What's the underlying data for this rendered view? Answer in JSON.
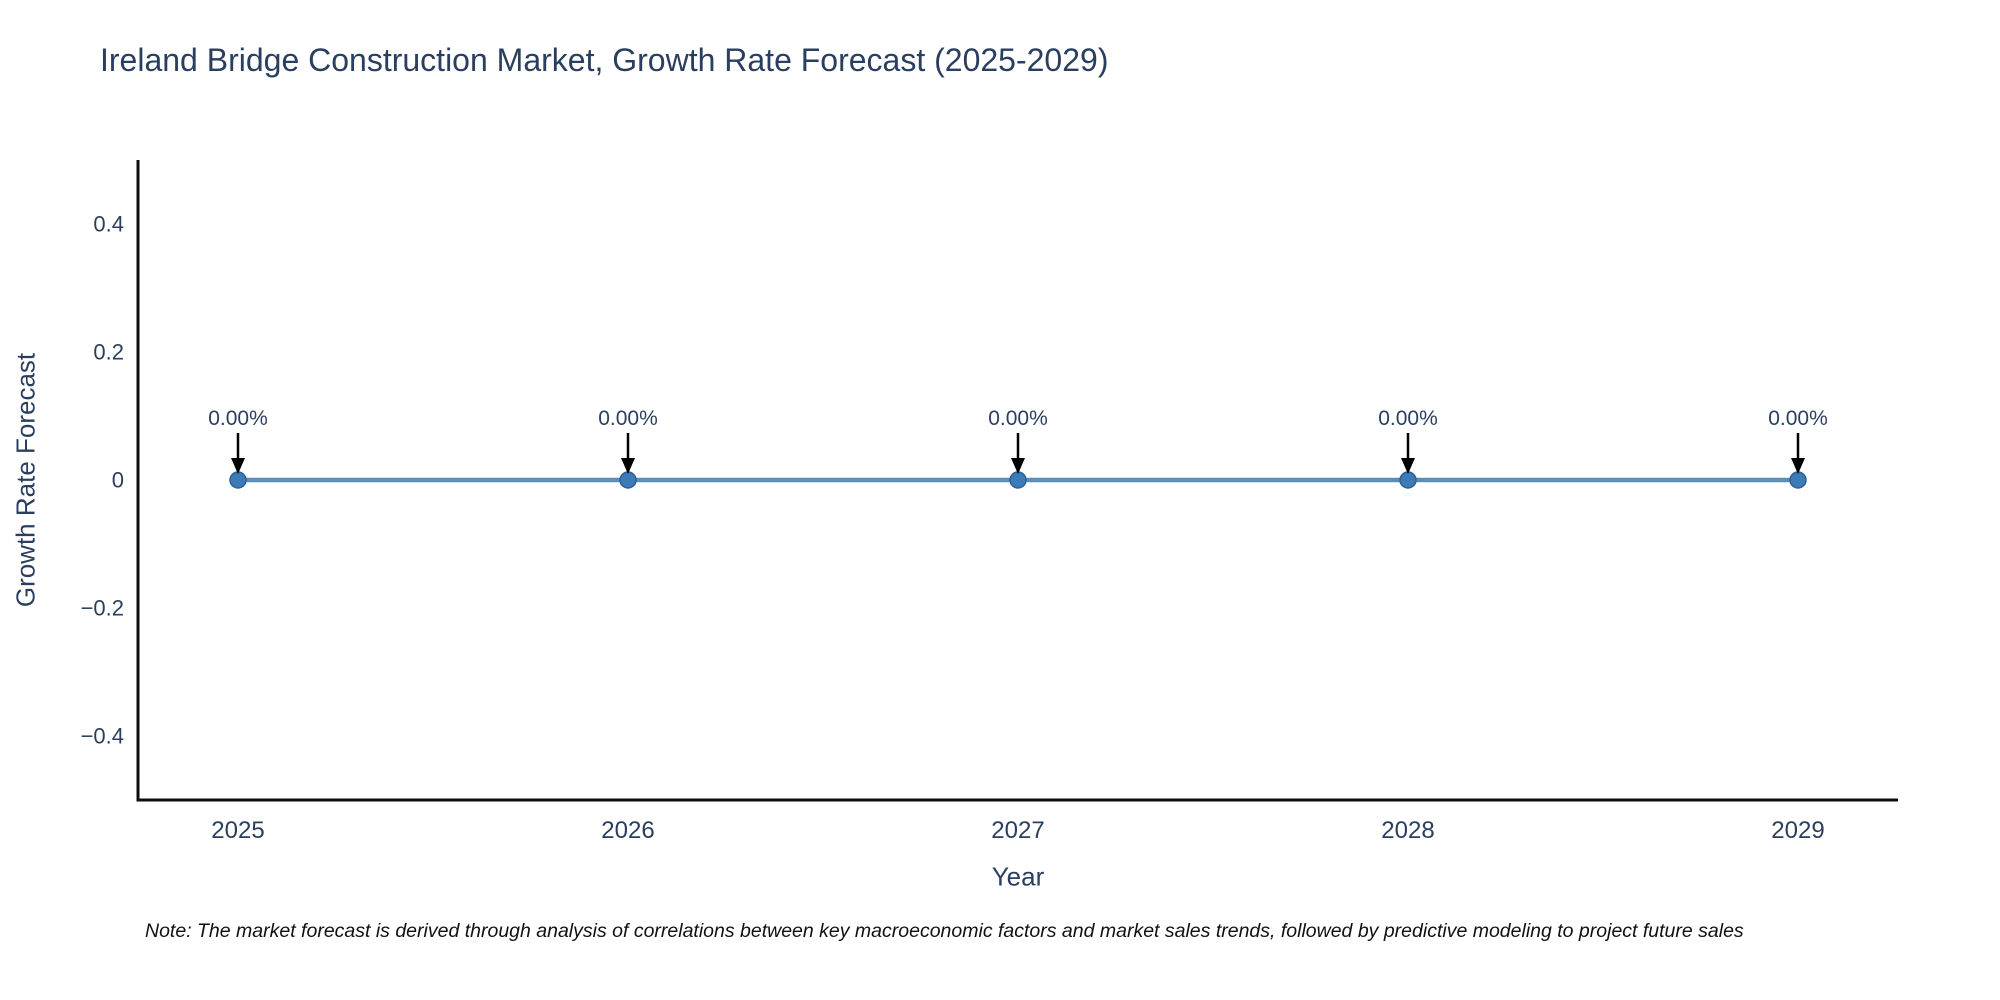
{
  "title": "Ireland Bridge Construction Market, Growth Rate Forecast (2025-2029)",
  "note": "Note: The market forecast is derived through analysis of correlations between key macroeconomic factors and market sales trends, followed by predictive modeling to project future sales",
  "chart_data": {
    "type": "line",
    "title": "Ireland Bridge Construction Market, Growth Rate Forecast (2025-2029)",
    "xlabel": "Year",
    "ylabel": "Growth Rate Forecast",
    "categories": [
      "2025",
      "2026",
      "2027",
      "2028",
      "2029"
    ],
    "values": [
      0,
      0,
      0,
      0,
      0
    ],
    "point_labels": [
      "0.00%",
      "0.00%",
      "0.00%",
      "0.00%",
      "0.00%"
    ],
    "ytick_values": [
      0.4,
      0.2,
      0,
      -0.2,
      -0.4
    ],
    "ytick_labels": [
      "0.4",
      "0.2",
      "0",
      "−0.2",
      "−0.4"
    ],
    "ylim": [
      -0.5,
      0.5
    ],
    "grid": false,
    "legend": false,
    "annotation_style": "black downward arrow pointing to each data point with percentage label above",
    "colors": {
      "line": "#5c8cba",
      "marker": "#3c7ab8",
      "marker_edge": "#2e6094",
      "axis": "#0d0d0d",
      "text": "#2a3f5f",
      "arrow": "#000000",
      "note_text": "#111111",
      "background": "#ffffff"
    }
  }
}
